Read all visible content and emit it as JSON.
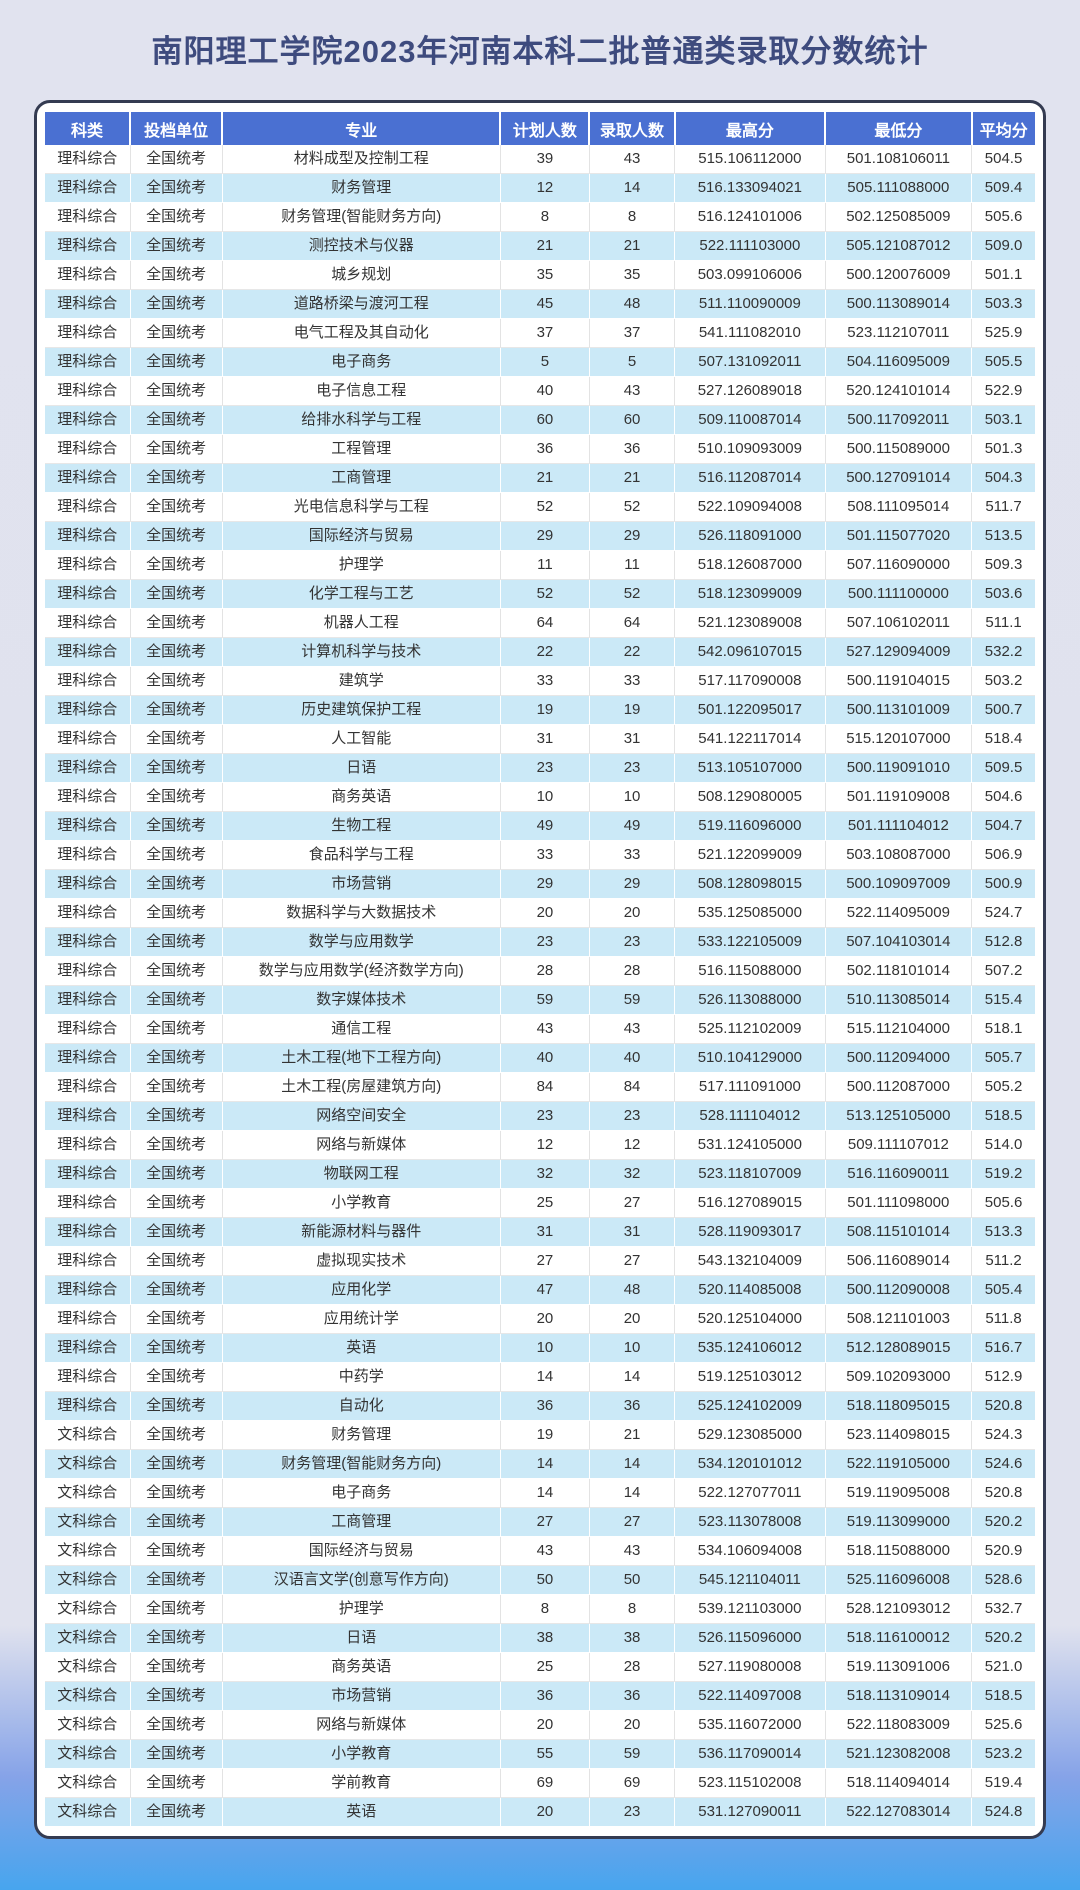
{
  "page": {
    "title": "南阳理工学院2023年河南本科二批普通类录取分数统计"
  },
  "colors": {
    "page_bg_top": "#e1e3ef",
    "page_bg_bottom": "#47a5ee",
    "title_color": "#3e4b7e",
    "card_bg": "#ffffff",
    "card_border": "#343b51",
    "header_bg": "#4a70d2",
    "header_text": "#ffffff",
    "row_alt_bg": "#cbe9f7",
    "body_text": "#333333"
  },
  "table": {
    "columns": [
      "科类",
      "投档单位",
      "专业",
      "计划人数",
      "录取人数",
      "最高分",
      "最低分",
      "平均分"
    ],
    "col_widths": [
      "8.6%",
      "9.3%",
      "28.1%",
      "9.0%",
      "8.6%",
      "15.2%",
      "14.8%",
      "6.4%"
    ],
    "rows": [
      [
        "理科综合",
        "全国统考",
        "材料成型及控制工程",
        "39",
        "43",
        "515.106112000",
        "501.108106011",
        "504.5"
      ],
      [
        "理科综合",
        "全国统考",
        "财务管理",
        "12",
        "14",
        "516.133094021",
        "505.111088000",
        "509.4"
      ],
      [
        "理科综合",
        "全国统考",
        "财务管理(智能财务方向)",
        "8",
        "8",
        "516.124101006",
        "502.125085009",
        "505.6"
      ],
      [
        "理科综合",
        "全国统考",
        "测控技术与仪器",
        "21",
        "21",
        "522.111103000",
        "505.121087012",
        "509.0"
      ],
      [
        "理科综合",
        "全国统考",
        "城乡规划",
        "35",
        "35",
        "503.099106006",
        "500.120076009",
        "501.1"
      ],
      [
        "理科综合",
        "全国统考",
        "道路桥梁与渡河工程",
        "45",
        "48",
        "511.110090009",
        "500.113089014",
        "503.3"
      ],
      [
        "理科综合",
        "全国统考",
        "电气工程及其自动化",
        "37",
        "37",
        "541.111082010",
        "523.112107011",
        "525.9"
      ],
      [
        "理科综合",
        "全国统考",
        "电子商务",
        "5",
        "5",
        "507.131092011",
        "504.116095009",
        "505.5"
      ],
      [
        "理科综合",
        "全国统考",
        "电子信息工程",
        "40",
        "43",
        "527.126089018",
        "520.124101014",
        "522.9"
      ],
      [
        "理科综合",
        "全国统考",
        "给排水科学与工程",
        "60",
        "60",
        "509.110087014",
        "500.117092011",
        "503.1"
      ],
      [
        "理科综合",
        "全国统考",
        "工程管理",
        "36",
        "36",
        "510.109093009",
        "500.115089000",
        "501.3"
      ],
      [
        "理科综合",
        "全国统考",
        "工商管理",
        "21",
        "21",
        "516.112087014",
        "500.127091014",
        "504.3"
      ],
      [
        "理科综合",
        "全国统考",
        "光电信息科学与工程",
        "52",
        "52",
        "522.109094008",
        "508.111095014",
        "511.7"
      ],
      [
        "理科综合",
        "全国统考",
        "国际经济与贸易",
        "29",
        "29",
        "526.118091000",
        "501.115077020",
        "513.5"
      ],
      [
        "理科综合",
        "全国统考",
        "护理学",
        "11",
        "11",
        "518.126087000",
        "507.116090000",
        "509.3"
      ],
      [
        "理科综合",
        "全国统考",
        "化学工程与工艺",
        "52",
        "52",
        "518.123099009",
        "500.111100000",
        "503.6"
      ],
      [
        "理科综合",
        "全国统考",
        "机器人工程",
        "64",
        "64",
        "521.123089008",
        "507.106102011",
        "511.1"
      ],
      [
        "理科综合",
        "全国统考",
        "计算机科学与技术",
        "22",
        "22",
        "542.096107015",
        "527.129094009",
        "532.2"
      ],
      [
        "理科综合",
        "全国统考",
        "建筑学",
        "33",
        "33",
        "517.117090008",
        "500.119104015",
        "503.2"
      ],
      [
        "理科综合",
        "全国统考",
        "历史建筑保护工程",
        "19",
        "19",
        "501.122095017",
        "500.113101009",
        "500.7"
      ],
      [
        "理科综合",
        "全国统考",
        "人工智能",
        "31",
        "31",
        "541.122117014",
        "515.120107000",
        "518.4"
      ],
      [
        "理科综合",
        "全国统考",
        "日语",
        "23",
        "23",
        "513.105107000",
        "500.119091010",
        "509.5"
      ],
      [
        "理科综合",
        "全国统考",
        "商务英语",
        "10",
        "10",
        "508.129080005",
        "501.119109008",
        "504.6"
      ],
      [
        "理科综合",
        "全国统考",
        "生物工程",
        "49",
        "49",
        "519.116096000",
        "501.111104012",
        "504.7"
      ],
      [
        "理科综合",
        "全国统考",
        "食品科学与工程",
        "33",
        "33",
        "521.122099009",
        "503.108087000",
        "506.9"
      ],
      [
        "理科综合",
        "全国统考",
        "市场营销",
        "29",
        "29",
        "508.128098015",
        "500.109097009",
        "500.9"
      ],
      [
        "理科综合",
        "全国统考",
        "数据科学与大数据技术",
        "20",
        "20",
        "535.125085000",
        "522.114095009",
        "524.7"
      ],
      [
        "理科综合",
        "全国统考",
        "数学与应用数学",
        "23",
        "23",
        "533.122105009",
        "507.104103014",
        "512.8"
      ],
      [
        "理科综合",
        "全国统考",
        "数学与应用数学(经济数学方向)",
        "28",
        "28",
        "516.115088000",
        "502.118101014",
        "507.2"
      ],
      [
        "理科综合",
        "全国统考",
        "数字媒体技术",
        "59",
        "59",
        "526.113088000",
        "510.113085014",
        "515.4"
      ],
      [
        "理科综合",
        "全国统考",
        "通信工程",
        "43",
        "43",
        "525.112102009",
        "515.112104000",
        "518.1"
      ],
      [
        "理科综合",
        "全国统考",
        "土木工程(地下工程方向)",
        "40",
        "40",
        "510.104129000",
        "500.112094000",
        "505.7"
      ],
      [
        "理科综合",
        "全国统考",
        "土木工程(房屋建筑方向)",
        "84",
        "84",
        "517.111091000",
        "500.112087000",
        "505.2"
      ],
      [
        "理科综合",
        "全国统考",
        "网络空间安全",
        "23",
        "23",
        "528.111104012",
        "513.125105000",
        "518.5"
      ],
      [
        "理科综合",
        "全国统考",
        "网络与新媒体",
        "12",
        "12",
        "531.124105000",
        "509.111107012",
        "514.0"
      ],
      [
        "理科综合",
        "全国统考",
        "物联网工程",
        "32",
        "32",
        "523.118107009",
        "516.116090011",
        "519.2"
      ],
      [
        "理科综合",
        "全国统考",
        "小学教育",
        "25",
        "27",
        "516.127089015",
        "501.111098000",
        "505.6"
      ],
      [
        "理科综合",
        "全国统考",
        "新能源材料与器件",
        "31",
        "31",
        "528.119093017",
        "508.115101014",
        "513.3"
      ],
      [
        "理科综合",
        "全国统考",
        "虚拟现实技术",
        "27",
        "27",
        "543.132104009",
        "506.116089014",
        "511.2"
      ],
      [
        "理科综合",
        "全国统考",
        "应用化学",
        "47",
        "48",
        "520.114085008",
        "500.112090008",
        "505.4"
      ],
      [
        "理科综合",
        "全国统考",
        "应用统计学",
        "20",
        "20",
        "520.125104000",
        "508.121101003",
        "511.8"
      ],
      [
        "理科综合",
        "全国统考",
        "英语",
        "10",
        "10",
        "535.124106012",
        "512.128089015",
        "516.7"
      ],
      [
        "理科综合",
        "全国统考",
        "中药学",
        "14",
        "14",
        "519.125103012",
        "509.102093000",
        "512.9"
      ],
      [
        "理科综合",
        "全国统考",
        "自动化",
        "36",
        "36",
        "525.124102009",
        "518.118095015",
        "520.8"
      ],
      [
        "文科综合",
        "全国统考",
        "财务管理",
        "19",
        "21",
        "529.123085000",
        "523.114098015",
        "524.3"
      ],
      [
        "文科综合",
        "全国统考",
        "财务管理(智能财务方向)",
        "14",
        "14",
        "534.120101012",
        "522.119105000",
        "524.6"
      ],
      [
        "文科综合",
        "全国统考",
        "电子商务",
        "14",
        "14",
        "522.127077011",
        "519.119095008",
        "520.8"
      ],
      [
        "文科综合",
        "全国统考",
        "工商管理",
        "27",
        "27",
        "523.113078008",
        "519.113099000",
        "520.2"
      ],
      [
        "文科综合",
        "全国统考",
        "国际经济与贸易",
        "43",
        "43",
        "534.106094008",
        "518.115088000",
        "520.9"
      ],
      [
        "文科综合",
        "全国统考",
        "汉语言文学(创意写作方向)",
        "50",
        "50",
        "545.121104011",
        "525.116096008",
        "528.6"
      ],
      [
        "文科综合",
        "全国统考",
        "护理学",
        "8",
        "8",
        "539.121103000",
        "528.121093012",
        "532.7"
      ],
      [
        "文科综合",
        "全国统考",
        "日语",
        "38",
        "38",
        "526.115096000",
        "518.116100012",
        "520.2"
      ],
      [
        "文科综合",
        "全国统考",
        "商务英语",
        "25",
        "28",
        "527.119080008",
        "519.113091006",
        "521.0"
      ],
      [
        "文科综合",
        "全国统考",
        "市场营销",
        "36",
        "36",
        "522.114097008",
        "518.113109014",
        "518.5"
      ],
      [
        "文科综合",
        "全国统考",
        "网络与新媒体",
        "20",
        "20",
        "535.116072000",
        "522.118083009",
        "525.6"
      ],
      [
        "文科综合",
        "全国统考",
        "小学教育",
        "55",
        "59",
        "536.117090014",
        "521.123082008",
        "523.2"
      ],
      [
        "文科综合",
        "全国统考",
        "学前教育",
        "69",
        "69",
        "523.115102008",
        "518.114094014",
        "519.4"
      ],
      [
        "文科综合",
        "全国统考",
        "英语",
        "20",
        "23",
        "531.127090011",
        "522.127083014",
        "524.8"
      ]
    ]
  }
}
